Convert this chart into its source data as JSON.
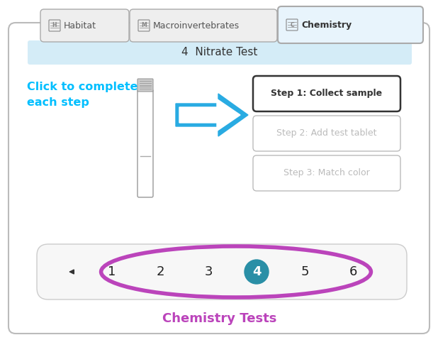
{
  "bg_color": "#ffffff",
  "main_panel_bg": "#ffffff",
  "main_panel_border": "#bbbbbb",
  "tab_habitat_label": "Habitat",
  "tab_macro_label": "Macroinvertebrates",
  "tab_chem_label": "Chemistry",
  "tab_active_bg": "#e8f4fc",
  "tab_inactive_bg": "#eeeeee",
  "tab_border": "#aaaaaa",
  "nitrate_bar_bg": "#d4ecf7",
  "nitrate_bar_text": "4  Nitrate Test",
  "nitrate_text_color": "#333333",
  "click_text_line1": "Click to complete",
  "click_text_line2": "each step",
  "click_text_color": "#00bfff",
  "arrow_color": "#29abe2",
  "step1_label": "Step 1: Collect sample",
  "step2_label": "Step 2: Add test tablet",
  "step3_label": "Step 3: Match color",
  "step_active_border": "#333333",
  "step_inactive_border": "#bbbbbb",
  "step_inactive_text": "#bbbbbb",
  "step_active_text": "#333333",
  "nav_numbers": [
    "1",
    "2",
    "3",
    "4",
    "5",
    "6"
  ],
  "nav_active_idx": 3,
  "nav_active_bg": "#2a8fa6",
  "nav_active_text": "#ffffff",
  "nav_inactive_text": "#222222",
  "nav_ellipse_color": "#bb44bb",
  "nav_ellipse_lw": 4.0,
  "nav_bar_bg": "#f7f7f7",
  "nav_bar_border": "#cccccc",
  "chem_tests_label": "Chemistry Tests",
  "chem_tests_color": "#bb44bb",
  "tube_border": "#999999",
  "tab_icon_color": "#888888"
}
